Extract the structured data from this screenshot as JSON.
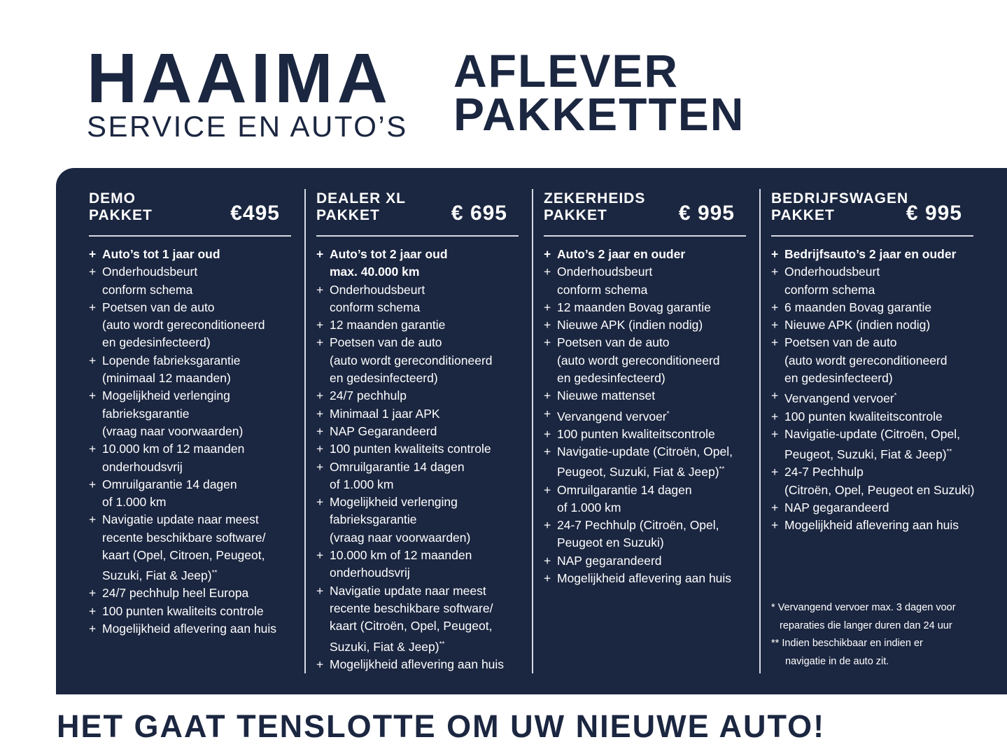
{
  "brand": {
    "name": "HAAIMA",
    "subtitle": "SERVICE EN AUTO’S"
  },
  "title": {
    "line1": "AFLEVER",
    "line2": "PAKKETTEN"
  },
  "colors": {
    "navy": "#1b2640",
    "rule": "#d6dbe5"
  },
  "packages": [
    {
      "name1": "DEMO",
      "name2": "PAKKET",
      "price": "€495",
      "items": [
        {
          "lines": [
            "Auto’s tot 1 jaar oud"
          ]
        },
        {
          "lines": [
            "Onderhoudsbeurt",
            "conform schema"
          ]
        },
        {
          "lines": [
            "Poetsen van de auto",
            "(auto wordt gereconditioneerd",
            "en gedesinfecteerd)"
          ]
        },
        {
          "lines": [
            "Lopende fabrieksgarantie",
            "(minimaal 12 maanden)"
          ]
        },
        {
          "lines": [
            "Mogelijkheid verlenging",
            "fabrieksgarantie",
            "(vraag naar voorwaarden)"
          ]
        },
        {
          "lines": [
            "10.000 km of 12 maanden",
            "onderhoudsvrij"
          ]
        },
        {
          "lines": [
            "Omruilgarantie 14 dagen",
            "of 1.000 km"
          ]
        },
        {
          "lines": [
            "Navigatie update naar meest",
            "recente beschikbare software/",
            "kaart (Opel, Citroen,  Peugeot,",
            "Suzuki, Fiat & Jeep)"
          ],
          "sup": "**"
        },
        {
          "lines": [
            "24/7 pechhulp heel Europa"
          ]
        },
        {
          "lines": [
            "100 punten kwaliteits controle"
          ]
        },
        {
          "lines": [
            "Mogelijkheid aflevering aan huis"
          ]
        }
      ]
    },
    {
      "name1": "DEALER XL",
      "name2": "PAKKET",
      "price": "€ 695",
      "items": [
        {
          "lines": [
            "Auto’s tot 2 jaar oud",
            "max. 40.000 km"
          ]
        },
        {
          "lines": [
            "Onderhoudsbeurt",
            "conform schema"
          ]
        },
        {
          "lines": [
            "12 maanden garantie"
          ]
        },
        {
          "lines": [
            "Poetsen van de auto",
            "(auto wordt gereconditioneerd",
            "en gedesinfecteerd)"
          ]
        },
        {
          "lines": [
            "24/7 pechhulp"
          ]
        },
        {
          "lines": [
            "Minimaal 1 jaar APK"
          ]
        },
        {
          "lines": [
            "NAP Gegarandeerd"
          ]
        },
        {
          "lines": [
            "100 punten kwaliteits controle"
          ]
        },
        {
          "lines": [
            "Omruilgarantie 14 dagen",
            "of 1.000 km"
          ]
        },
        {
          "lines": [
            "Mogelijkheid verlenging",
            "fabrieksgarantie",
            "(vraag naar voorwaarden)"
          ]
        },
        {
          "lines": [
            "10.000 km of 12 maanden",
            "onderhoudsvrij"
          ]
        },
        {
          "lines": [
            "Navigatie update naar meest",
            "recente beschikbare software/",
            "kaart (Citroën, Opel, Peugeot,",
            "Suzuki, Fiat & Jeep)"
          ],
          "sup": "**"
        },
        {
          "lines": [
            "Mogelijkheid aflevering aan huis"
          ]
        }
      ]
    },
    {
      "name1": "ZEKERHEIDS",
      "name2": "PAKKET",
      "price": "€ 995",
      "items": [
        {
          "lines": [
            "Auto’s 2 jaar en ouder"
          ]
        },
        {
          "lines": [
            "Onderhoudsbeurt",
            "conform schema"
          ]
        },
        {
          "lines": [
            "12 maanden Bovag garantie"
          ]
        },
        {
          "lines": [
            "Nieuwe APK (indien nodig)"
          ]
        },
        {
          "lines": [
            "Poetsen van de auto",
            "(auto wordt gereconditioneerd",
            "en gedesinfecteerd)"
          ]
        },
        {
          "lines": [
            "Nieuwe mattenset"
          ]
        },
        {
          "lines": [
            "Vervangend vervoer"
          ],
          "sup": "*"
        },
        {
          "lines": [
            "100 punten kwaliteitscontrole"
          ]
        },
        {
          "lines": [
            "Navigatie-update (Citroën, Opel,",
            "Peugeot, Suzuki, Fiat & Jeep)"
          ],
          "sup": "**"
        },
        {
          "lines": [
            "Omruilgarantie 14 dagen",
            "of 1.000 km"
          ]
        },
        {
          "lines": [
            "24-7 Pechhulp (Citroën, Opel,",
            "Peugeot en Suzuki)"
          ]
        },
        {
          "lines": [
            "NAP gegarandeerd"
          ]
        },
        {
          "lines": [
            "Mogelijkheid aflevering aan huis"
          ]
        }
      ]
    },
    {
      "name1": "BEDRIJFSWAGEN",
      "name2": "PAKKET",
      "price": "€ 995",
      "items": [
        {
          "lines": [
            "Bedrijfsauto’s 2 jaar en ouder"
          ]
        },
        {
          "lines": [
            "Onderhoudsbeurt",
            "conform schema"
          ]
        },
        {
          "lines": [
            "6 maanden Bovag garantie"
          ]
        },
        {
          "lines": [
            "Nieuwe APK (indien nodig)"
          ]
        },
        {
          "lines": [
            "Poetsen van de auto",
            "(auto wordt gereconditioneerd",
            "en gedesinfecteerd)"
          ]
        },
        {
          "lines": [
            "Vervangend vervoer"
          ],
          "sup": "*"
        },
        {
          "lines": [
            "100 punten kwaliteitscontrole"
          ]
        },
        {
          "lines": [
            "Navigatie-update (Citroën, Opel,",
            "Peugeot, Suzuki, Fiat & Jeep)"
          ],
          "sup": "**"
        },
        {
          "lines": [
            "24-7 Pechhulp",
            "(Citroën, Opel, Peugeot en Suzuki)"
          ]
        },
        {
          "lines": [
            "NAP gegarandeerd"
          ]
        },
        {
          "lines": [
            "Mogelijkheid aflevering aan huis"
          ]
        }
      ]
    }
  ],
  "notes": [
    {
      "line1": "* Vervangend vervoer max. 3 dagen voor",
      "line2": "reparaties die langer duren dan 24 uur"
    },
    {
      "line1": "** Indien beschikbaar en indien er",
      "line2": "navigatie in de auto zit."
    }
  ],
  "slogan": "HET GAAT TENSLOTTE OM UW NIEUWE AUTO!"
}
